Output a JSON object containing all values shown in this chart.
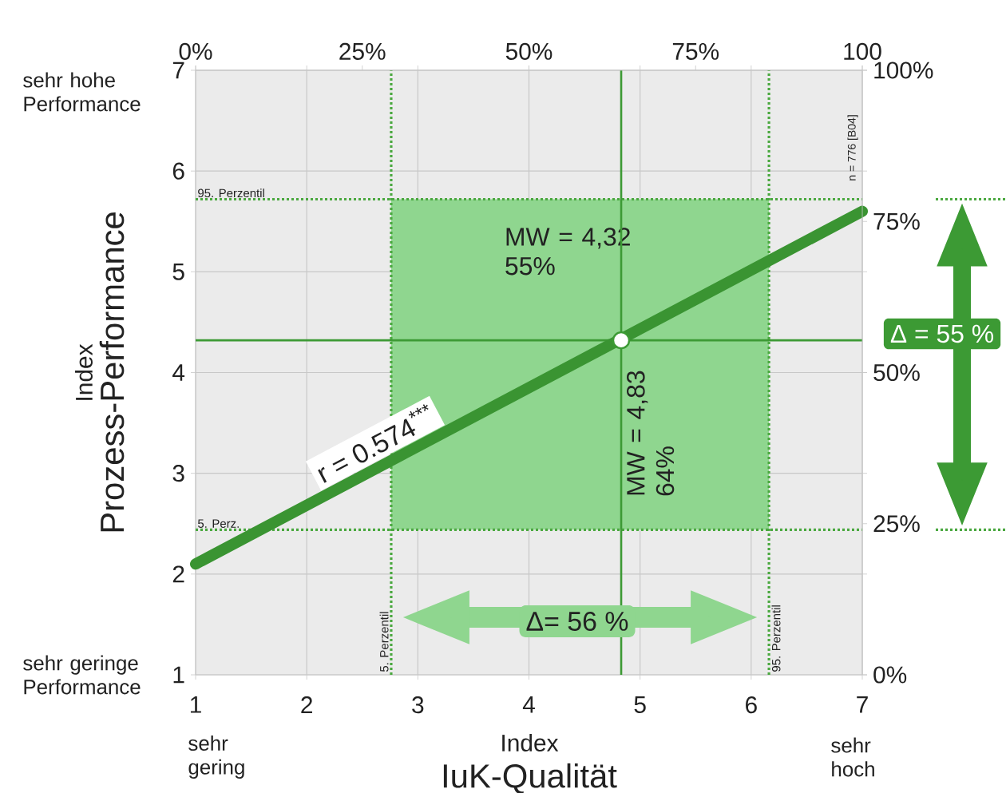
{
  "chart_data": {
    "type": "line",
    "xlabel": "IuK-Qualität",
    "ylabel": "Prozess-Performance",
    "xlim": [
      1,
      7
    ],
    "ylim": [
      1,
      7
    ],
    "xticks": [
      1,
      2,
      3,
      4,
      5,
      6,
      7
    ],
    "yticks": [
      1,
      2,
      3,
      4,
      5,
      6,
      7
    ],
    "x2lim": [
      0,
      100
    ],
    "x2ticks": [
      {
        "value": 0,
        "label": "0%"
      },
      {
        "value": 25,
        "label": "25%"
      },
      {
        "value": 50,
        "label": "50%"
      },
      {
        "value": 75,
        "label": "75%"
      },
      100
    ],
    "y2lim": [
      0,
      100
    ],
    "y2ticks": [
      {
        "value": 0,
        "label": "0%"
      },
      {
        "value": 25,
        "label": "25%"
      },
      {
        "value": 50,
        "label": "50%"
      },
      {
        "value": 75,
        "label": "75%"
      },
      {
        "value": 100,
        "label": "100%"
      }
    ],
    "grid": true,
    "series": [
      {
        "type": "line",
        "color": "#3a9432",
        "x": [
          1,
          7
        ],
        "values": [
          2.1,
          5.6
        ]
      },
      {
        "type": "scatter",
        "color": "#ffffff",
        "x": [
          4.83
        ],
        "values": [
          4.32
        ]
      }
    ],
    "bands": [
      {
        "axis": "x",
        "from": 2.76,
        "to": 6.16,
        "color": "#8fd68f"
      }
    ],
    "ref_lines": [
      {
        "axis": "y",
        "value": 5.72,
        "label": "95. Perzentil",
        "color": "#4aa83f",
        "line_style": "dotted"
      },
      {
        "axis": "y",
        "value": 2.44,
        "label": "5. Perz.",
        "color": "#4aa83f",
        "line_style": "dotted"
      },
      {
        "axis": "x",
        "value": 2.76,
        "label": "5. Perzentil",
        "color": "#4aa83f",
        "line_style": "dotted"
      },
      {
        "axis": "x",
        "value": 6.16,
        "label": "95. Perzentil",
        "color": "#4aa83f",
        "line_style": "dotted"
      },
      {
        "axis": "y",
        "value": 4.32,
        "label": "MW = 4,32 55%",
        "color": "#3d9a35",
        "line_style": "solid"
      },
      {
        "axis": "x",
        "value": 4.83,
        "label": "MW = 4,83 64%",
        "color": "#3d9a35",
        "line_style": "solid"
      }
    ],
    "annotations": [
      "r = 0.574$^{***}$",
      "Δ = 55 %",
      "Δ= 56 %",
      "n = 776 [B04]",
      "sehr hohe Performance",
      "sehr geringe Performance",
      "sehr gering",
      "sehr hoch",
      "Index",
      "Index"
    ]
  }
}
